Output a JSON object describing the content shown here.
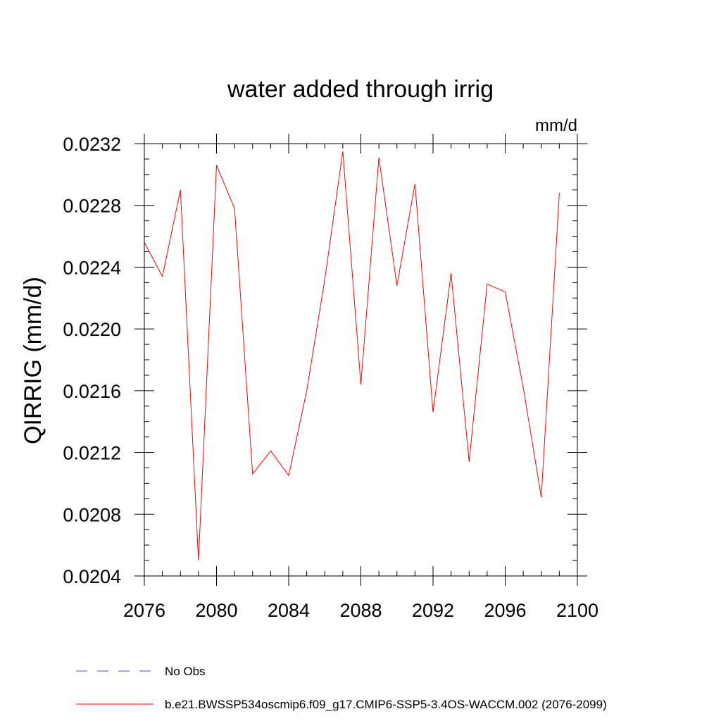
{
  "chart_data": {
    "type": "line",
    "title": "water added through irrig",
    "units_label": "mm/d",
    "ylabel": "QIRRIG  (mm/d)",
    "xlabel": "",
    "xlim": [
      2076,
      2100
    ],
    "ylim": [
      0.0204,
      0.0233
    ],
    "x_ticks": [
      2076,
      2080,
      2084,
      2088,
      2092,
      2096,
      2100
    ],
    "x_tick_labels": [
      "2076",
      "2080",
      "2084",
      "2088",
      "2092",
      "2096",
      "2100"
    ],
    "y_ticks": [
      0.0204,
      0.0208,
      0.0212,
      0.0216,
      0.022,
      0.0224,
      0.0228,
      0.0232
    ],
    "y_tick_labels": [
      "0.0204",
      "0.0208",
      "0.0212",
      "0.0216",
      "0.0220",
      "0.0224",
      "0.0228",
      "0.0232"
    ],
    "series": [
      {
        "name": "b.e21.BWSSP534oscmip6.f09_g17.CMIP6-SSP5-3.4OS-WACCM.002 (2076-2099)",
        "color": "#ff0000",
        "x": [
          2076,
          2077,
          2078,
          2079,
          2080,
          2081,
          2082,
          2083,
          2084,
          2085,
          2086,
          2087,
          2088,
          2089,
          2090,
          2091,
          2092,
          2093,
          2094,
          2095,
          2096,
          2097,
          2098,
          2099
        ],
        "values": [
          0.02256,
          0.02234,
          0.0229,
          0.0205,
          0.02306,
          0.02278,
          0.02106,
          0.02121,
          0.02105,
          0.0216,
          0.02232,
          0.02315,
          0.02164,
          0.02311,
          0.02228,
          0.02294,
          0.02146,
          0.02236,
          0.02114,
          0.02229,
          0.02224,
          0.02162,
          0.02091,
          0.02288
        ]
      }
    ],
    "legend": [
      {
        "label": "No Obs",
        "color": "#5a5aa0",
        "style": "dashed"
      },
      {
        "label": "b.e21.BWSSP534oscmip6.f09_g17.CMIP6-SSP5-3.4OS-WACCM.002 (2076-2099)",
        "color": "#ff0000",
        "style": "solid"
      }
    ],
    "legend_position": "bottom-left"
  }
}
